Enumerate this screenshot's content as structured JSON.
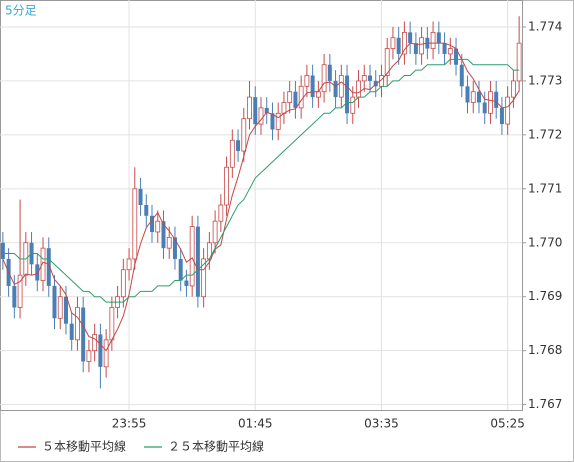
{
  "chart_data": {
    "type": "candlestick",
    "title": "5分足",
    "categories": [
      null,
      null,
      null,
      null,
      null,
      null,
      null,
      null,
      null,
      null,
      null,
      null,
      null,
      null,
      null,
      null,
      null,
      null,
      null,
      null,
      null,
      null,
      "23:55",
      null,
      null,
      null,
      null,
      null,
      null,
      null,
      null,
      null,
      null,
      null,
      null,
      null,
      null,
      null,
      null,
      null,
      null,
      null,
      null,
      null,
      "01:45",
      null,
      null,
      null,
      null,
      null,
      null,
      null,
      null,
      null,
      null,
      null,
      null,
      null,
      null,
      null,
      null,
      null,
      null,
      null,
      null,
      null,
      "03:35",
      null,
      null,
      null,
      null,
      null,
      null,
      null,
      null,
      null,
      null,
      null,
      null,
      null,
      null,
      null,
      null,
      null,
      null,
      null,
      null,
      null,
      "05:25",
      null,
      null
    ],
    "open": [
      1.77,
      1.7697,
      1.7692,
      1.7688,
      1.7694,
      1.77,
      1.7696,
      1.7693,
      1.7699,
      1.7692,
      1.7686,
      1.769,
      1.7685,
      1.7682,
      1.7688,
      1.7678,
      1.768,
      1.7683,
      1.7677,
      1.7682,
      1.7688,
      1.769,
      1.7695,
      1.7697,
      1.771,
      1.7707,
      1.7705,
      1.7702,
      1.7704,
      1.7699,
      1.7701,
      1.7697,
      1.7693,
      1.7692,
      1.7703,
      1.769,
      1.7697,
      1.77,
      1.7704,
      1.7707,
      1.7714,
      1.7719,
      1.7717,
      1.7723,
      1.7727,
      1.7722,
      1.7725,
      1.7724,
      1.7721,
      1.7724,
      1.7726,
      1.7728,
      1.7725,
      1.7729,
      1.7731,
      1.7727,
      1.7728,
      1.7733,
      1.773,
      1.7727,
      1.7731,
      1.7724,
      1.7727,
      1.773,
      1.7731,
      1.773,
      1.7729,
      1.7731,
      1.7736,
      1.7738,
      1.7735,
      1.7739,
      1.7737,
      1.7735,
      1.7738,
      1.7736,
      1.7739,
      1.7737,
      1.7735,
      1.7736,
      1.7733,
      1.7729,
      1.7726,
      1.7728,
      1.7726,
      1.7724,
      1.7728,
      1.7725,
      1.7722,
      1.7727,
      1.773
    ],
    "high": [
      1.7702,
      1.7699,
      1.7694,
      1.7708,
      1.7702,
      1.7702,
      1.7698,
      1.7701,
      1.7701,
      1.7694,
      1.7692,
      1.7692,
      1.7687,
      1.769,
      1.769,
      1.7682,
      1.7685,
      1.7685,
      1.7684,
      1.769,
      1.7692,
      1.7697,
      1.7699,
      1.7714,
      1.7712,
      1.7709,
      1.7707,
      1.7706,
      1.7706,
      1.7703,
      1.7703,
      1.7699,
      1.7695,
      1.7705,
      1.7705,
      1.7699,
      1.7702,
      1.7706,
      1.7709,
      1.7716,
      1.7721,
      1.7721,
      1.7725,
      1.773,
      1.7729,
      1.7727,
      1.7727,
      1.7726,
      1.7726,
      1.7728,
      1.773,
      1.773,
      1.7731,
      1.7733,
      1.7733,
      1.773,
      1.7735,
      1.7735,
      1.7732,
      1.7733,
      1.7733,
      1.7729,
      1.7732,
      1.7733,
      1.7733,
      1.7732,
      1.7733,
      1.7738,
      1.774,
      1.774,
      1.7741,
      1.7741,
      1.7739,
      1.774,
      1.774,
      1.7741,
      1.7741,
      1.7739,
      1.7738,
      1.7738,
      1.7735,
      1.7731,
      1.773,
      1.773,
      1.7728,
      1.773,
      1.773,
      1.7727,
      1.7729,
      1.7732,
      1.7742
    ],
    "low": [
      1.7695,
      1.769,
      1.7686,
      1.7686,
      1.7692,
      1.7694,
      1.7691,
      1.7691,
      1.769,
      1.7684,
      1.7684,
      1.7683,
      1.768,
      1.768,
      1.7676,
      1.7676,
      1.7678,
      1.7673,
      1.7675,
      1.768,
      1.7686,
      1.7688,
      1.7693,
      1.7695,
      1.7705,
      1.7703,
      1.77,
      1.77,
      1.7697,
      1.7697,
      1.7695,
      1.7691,
      1.769,
      1.769,
      1.7688,
      1.7688,
      1.7695,
      1.7698,
      1.7702,
      1.7705,
      1.7712,
      1.7715,
      1.7715,
      1.7721,
      1.772,
      1.772,
      1.7722,
      1.7719,
      1.7719,
      1.7722,
      1.7724,
      1.7723,
      1.7723,
      1.7727,
      1.7725,
      1.7725,
      1.7726,
      1.7728,
      1.7725,
      1.7725,
      1.7722,
      1.7722,
      1.7725,
      1.7728,
      1.7728,
      1.7727,
      1.7727,
      1.7729,
      1.7734,
      1.7733,
      1.7733,
      1.7735,
      1.7733,
      1.7733,
      1.7734,
      1.7734,
      1.7735,
      1.7733,
      1.7733,
      1.7731,
      1.7727,
      1.7724,
      1.7724,
      1.7724,
      1.7722,
      1.7722,
      1.7723,
      1.772,
      1.772,
      1.7725,
      1.7728
    ],
    "close": [
      1.7697,
      1.7692,
      1.7688,
      1.7694,
      1.77,
      1.7696,
      1.7693,
      1.7699,
      1.7692,
      1.7686,
      1.769,
      1.7685,
      1.7682,
      1.7688,
      1.7678,
      1.768,
      1.7683,
      1.7677,
      1.7682,
      1.7688,
      1.769,
      1.7695,
      1.7697,
      1.771,
      1.7707,
      1.7705,
      1.7702,
      1.7704,
      1.7699,
      1.7701,
      1.7697,
      1.7693,
      1.7692,
      1.7703,
      1.769,
      1.7697,
      1.77,
      1.7704,
      1.7707,
      1.7714,
      1.7719,
      1.7717,
      1.7723,
      1.7727,
      1.7722,
      1.7725,
      1.7724,
      1.7721,
      1.7724,
      1.7726,
      1.7728,
      1.7725,
      1.7729,
      1.7731,
      1.7727,
      1.7728,
      1.7733,
      1.773,
      1.7727,
      1.7731,
      1.7724,
      1.7727,
      1.773,
      1.7731,
      1.773,
      1.7729,
      1.7731,
      1.7736,
      1.7738,
      1.7735,
      1.7739,
      1.7737,
      1.7735,
      1.7738,
      1.7736,
      1.7739,
      1.7737,
      1.7735,
      1.7736,
      1.7733,
      1.7729,
      1.7726,
      1.7728,
      1.7726,
      1.7724,
      1.7728,
      1.7725,
      1.7722,
      1.7727,
      1.773,
      1.7737
    ],
    "up_color": "#c84a4a",
    "down_color": "#4a7fb5",
    "series": [
      {
        "name": "５本移動平均線",
        "color": "#c04848",
        "values": [
          1.7697,
          1.76945,
          1.76923,
          1.76928,
          1.76942,
          1.7694,
          1.76942,
          1.76964,
          1.7696,
          1.76932,
          1.7692,
          1.76904,
          1.7687,
          1.76862,
          1.76846,
          1.76826,
          1.76822,
          1.76812,
          1.768,
          1.7682,
          1.7684,
          1.76864,
          1.76904,
          1.7696,
          1.76998,
          1.77028,
          1.77042,
          1.77056,
          1.77034,
          1.77022,
          1.77006,
          1.76988,
          1.76964,
          1.76972,
          1.7695,
          1.7695,
          1.76964,
          1.76988,
          1.76996,
          1.77044,
          1.77088,
          1.77122,
          1.7716,
          1.772,
          1.77216,
          1.77228,
          1.77242,
          1.77238,
          1.77232,
          1.7724,
          1.77246,
          1.77248,
          1.77264,
          1.77278,
          1.7728,
          1.7728,
          1.77296,
          1.77298,
          1.7729,
          1.77298,
          1.7729,
          1.77278,
          1.77278,
          1.77286,
          1.77284,
          1.77294,
          1.77302,
          1.77314,
          1.77328,
          1.77338,
          1.77358,
          1.7737,
          1.77368,
          1.77368,
          1.7737,
          1.7737,
          1.7737,
          1.7737,
          1.77366,
          1.7736,
          1.7734,
          1.77318,
          1.77304,
          1.77284,
          1.77266,
          1.77264,
          1.77262,
          1.7725,
          1.77252,
          1.77264,
          1.77282
        ]
      },
      {
        "name": "２５本移動平均線",
        "color": "#2e9e6a",
        "values": [
          1.7698,
          1.7698,
          1.7698,
          1.7697,
          1.7697,
          1.7698,
          1.7698,
          1.7697,
          1.7697,
          1.7696,
          1.7695,
          1.7694,
          1.7693,
          1.7692,
          1.7691,
          1.7691,
          1.769,
          1.769,
          1.7689,
          1.7689,
          1.7689,
          1.7689,
          1.769,
          1.769,
          1.7691,
          1.7691,
          1.7691,
          1.7692,
          1.7692,
          1.7692,
          1.7693,
          1.7693,
          1.7694,
          1.7694,
          1.7695,
          1.7696,
          1.7697,
          1.7699,
          1.7701,
          1.7703,
          1.7705,
          1.7707,
          1.7708,
          1.771,
          1.7712,
          1.7713,
          1.7714,
          1.7715,
          1.7716,
          1.7717,
          1.7718,
          1.7719,
          1.772,
          1.7721,
          1.7722,
          1.7723,
          1.7724,
          1.7724,
          1.7725,
          1.7725,
          1.7726,
          1.7726,
          1.7727,
          1.7727,
          1.7728,
          1.7728,
          1.7729,
          1.7729,
          1.773,
          1.773,
          1.7731,
          1.7731,
          1.7732,
          1.7732,
          1.7733,
          1.7733,
          1.7733,
          1.7733,
          1.7734,
          1.7734,
          1.7734,
          1.7734,
          1.7733,
          1.7733,
          1.7733,
          1.7733,
          1.7733,
          1.7733,
          1.7733,
          1.7732,
          1.7732
        ]
      }
    ],
    "ylim": [
      1.7669,
      1.7745
    ],
    "yticks": [
      1.774,
      1.773,
      1.772,
      1.771,
      {
        "value": 1.77,
        "label": "1.770"
      },
      1.769,
      1.768,
      1.767
    ],
    "grid": true
  }
}
